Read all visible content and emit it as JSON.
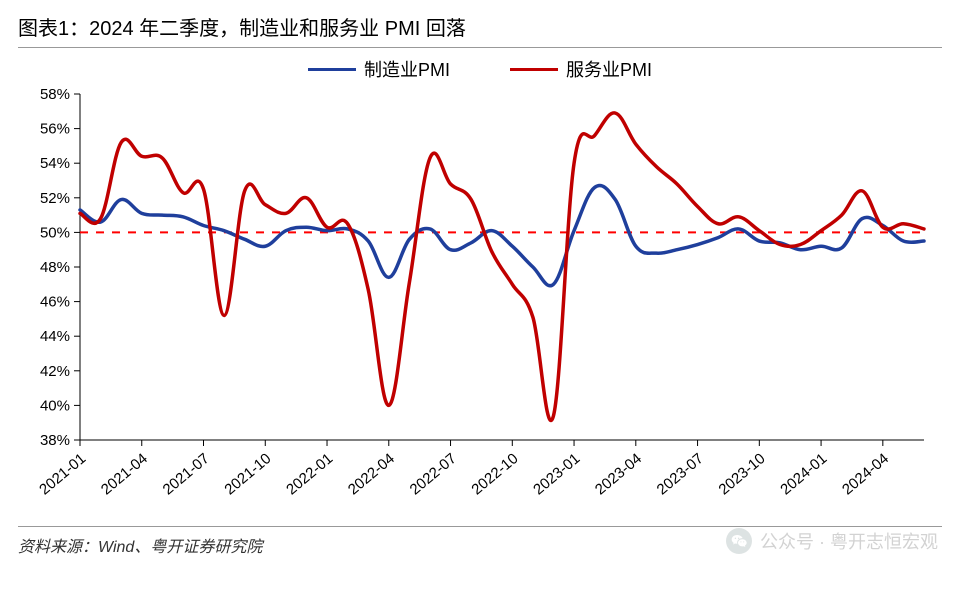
{
  "title": {
    "text": "图表1：2024 年二季度，制造业和服务业 PMI 回落",
    "fontsize_pt": 20,
    "fontweight": 700,
    "color": "#000000"
  },
  "legend": {
    "position": "top-center",
    "fontsize_pt": 18,
    "items": [
      {
        "label": "制造业PMI",
        "color": "#1f3f9c",
        "line_width": 3.5
      },
      {
        "label": "服务业PMI",
        "color": "#c00000",
        "line_width": 3.5
      }
    ]
  },
  "reference_line": {
    "value": 50,
    "color": "#ff0000",
    "dash": "8,8",
    "width": 2
  },
  "chart": {
    "type": "line",
    "background_color": "#ffffff",
    "plot_border_color": "#000000",
    "plot_border_width": 1,
    "aspect_note": "wide ~920x440",
    "smooth": true,
    "y_axis": {
      "lim": [
        38,
        58
      ],
      "tick_step": 2,
      "tick_format": "{v}%",
      "tick_fontsize_pt": 15,
      "tick_color": "#000000",
      "grid": false
    },
    "x_axis": {
      "categories": [
        "2021-01",
        "2021-02",
        "2021-03",
        "2021-04",
        "2021-05",
        "2021-06",
        "2021-07",
        "2021-08",
        "2021-09",
        "2021-10",
        "2021-11",
        "2021-12",
        "2022-01",
        "2022-02",
        "2022-03",
        "2022-04",
        "2022-05",
        "2022-06",
        "2022-07",
        "2022-08",
        "2022-09",
        "2022-10",
        "2022-11",
        "2022-12",
        "2023-01",
        "2023-02",
        "2023-03",
        "2023-04",
        "2023-05",
        "2023-06",
        "2023-07",
        "2023-08",
        "2023-09",
        "2023-10",
        "2023-11",
        "2023-12",
        "2024-01",
        "2024-02",
        "2024-03",
        "2024-04",
        "2024-05",
        "2024-06"
      ],
      "tick_labels_shown": [
        "2021-01",
        "2021-04",
        "2021-07",
        "2021-10",
        "2022-01",
        "2022-04",
        "2022-07",
        "2022-10",
        "2023-01",
        "2023-04",
        "2023-07",
        "2023-10",
        "2024-01",
        "2024-04"
      ],
      "tick_fontsize_pt": 15,
      "tick_rotation_deg": -40,
      "tick_color": "#000000"
    },
    "series": [
      {
        "name": "制造业PMI",
        "color": "#1f3f9c",
        "line_width": 3.5,
        "values": [
          51.3,
          50.6,
          51.9,
          51.1,
          51.0,
          50.9,
          50.4,
          50.1,
          49.6,
          49.2,
          50.1,
          50.3,
          50.1,
          50.2,
          49.5,
          47.4,
          49.6,
          50.2,
          49.0,
          49.4,
          50.1,
          49.2,
          48.0,
          47.0,
          50.1,
          52.6,
          51.9,
          49.2,
          48.8,
          49.0,
          49.3,
          49.7,
          50.2,
          49.5,
          49.4,
          49.0,
          49.2,
          49.1,
          50.8,
          50.4,
          49.5,
          49.5
        ]
      },
      {
        "name": "服务业PMI",
        "color": "#c00000",
        "line_width": 3.5,
        "values": [
          51.1,
          50.8,
          55.2,
          54.4,
          54.3,
          52.3,
          52.5,
          45.2,
          52.4,
          51.6,
          51.1,
          52.0,
          50.3,
          50.5,
          46.7,
          40.0,
          47.1,
          54.3,
          52.8,
          51.9,
          48.9,
          47.0,
          45.1,
          39.4,
          54.0,
          55.6,
          56.9,
          55.1,
          53.8,
          52.8,
          51.5,
          50.5,
          50.9,
          50.1,
          49.3,
          49.3,
          50.1,
          51.0,
          52.4,
          50.3,
          50.5,
          50.2
        ]
      }
    ]
  },
  "source": {
    "text": "资料来源：Wind、粤开证券研究院",
    "fontsize_pt": 16,
    "font_style": "italic",
    "color": "#333333"
  },
  "watermark": {
    "text": "公众号 · 粤开志恒宏观",
    "icon_name": "wechat-icon"
  }
}
